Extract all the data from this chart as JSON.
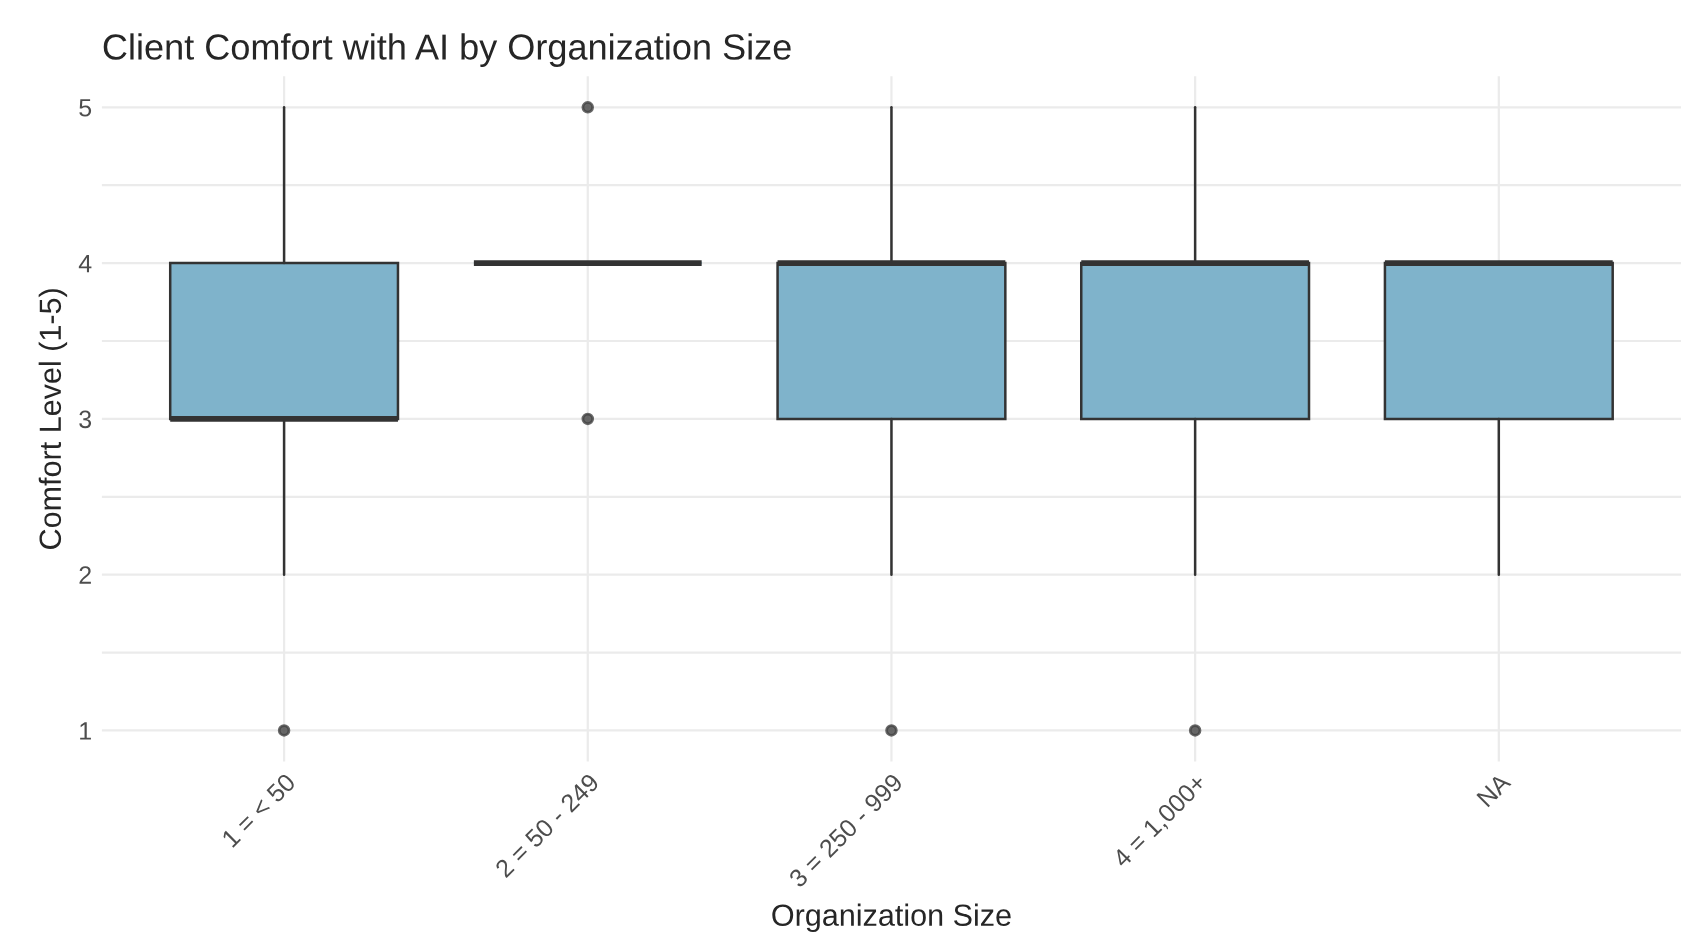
{
  "chart_data": {
    "type": "box",
    "title": "Client Comfort with AI by Organization Size",
    "xlabel": "Organization Size",
    "ylabel": "Comfort Level (1-5)",
    "categories": [
      "1 = < 50",
      "2 = 50 - 249",
      "3 = 250 - 999",
      "4 = 1,000+",
      "NA"
    ],
    "color": "#7fb3cb",
    "boxes": [
      {
        "low": 2,
        "q1": 3,
        "median": 3,
        "q3": 4,
        "high": 5,
        "outliers": [
          1
        ]
      },
      {
        "low": 4,
        "q1": 4,
        "median": 4,
        "q3": 4,
        "high": 4,
        "outliers": [
          3,
          5
        ]
      },
      {
        "low": 2,
        "q1": 3,
        "median": 4,
        "q3": 4,
        "high": 5,
        "outliers": [
          1
        ]
      },
      {
        "low": 2,
        "q1": 3,
        "median": 4,
        "q3": 4,
        "high": 5,
        "outliers": [
          1
        ]
      },
      {
        "low": 2,
        "q1": 3,
        "median": 4,
        "q3": 4,
        "high": 4
      }
    ],
    "ylim": [
      0.8,
      5.2
    ],
    "yticks": [
      1,
      {
        "value": 1.5,
        "label": null
      },
      2,
      {
        "value": 2.5,
        "label": null
      },
      3,
      {
        "value": 3.5,
        "label": null
      },
      4,
      {
        "value": 4.5,
        "label": null
      },
      5
    ],
    "grid": true
  }
}
